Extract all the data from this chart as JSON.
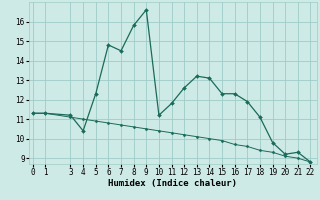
{
  "xlabel": "Humidex (Indice chaleur)",
  "bg_color": "#ceeae6",
  "grid_color": "#9eccc7",
  "line_color": "#1a6b5a",
  "line1_x": [
    0,
    1,
    3,
    4,
    5,
    6,
    7,
    8,
    9,
    10,
    11,
    12,
    13,
    14,
    15,
    16,
    17,
    18,
    19,
    20,
    21,
    22
  ],
  "line1_y": [
    11.3,
    11.3,
    11.2,
    10.4,
    12.3,
    14.8,
    14.5,
    15.8,
    16.6,
    11.2,
    11.8,
    12.6,
    13.2,
    13.1,
    12.3,
    12.3,
    11.9,
    11.1,
    9.8,
    9.2,
    9.3,
    8.8
  ],
  "line2_x": [
    0,
    1,
    3,
    4,
    5,
    6,
    7,
    8,
    9,
    10,
    11,
    12,
    13,
    14,
    15,
    16,
    17,
    18,
    19,
    20,
    21,
    22
  ],
  "line2_y": [
    11.3,
    11.3,
    11.1,
    11.0,
    10.9,
    10.8,
    10.7,
    10.6,
    10.5,
    10.4,
    10.3,
    10.2,
    10.1,
    10.0,
    9.9,
    9.7,
    9.6,
    9.4,
    9.3,
    9.1,
    9.0,
    8.8
  ],
  "xlim": [
    -0.3,
    22.5
  ],
  "ylim": [
    8.7,
    17.0
  ],
  "yticks": [
    9,
    10,
    11,
    12,
    13,
    14,
    15,
    16
  ],
  "xticks": [
    0,
    1,
    3,
    4,
    5,
    6,
    7,
    8,
    9,
    10,
    11,
    12,
    13,
    14,
    15,
    16,
    17,
    18,
    19,
    20,
    21,
    22
  ],
  "xtick_labels": [
    "0",
    "1",
    "3",
    "4",
    "5",
    "6",
    "7",
    "8",
    "9",
    "10",
    "11",
    "12",
    "13",
    "14",
    "15",
    "16",
    "17",
    "18",
    "19",
    "20",
    "21",
    "22"
  ],
  "axis_fontsize": 6.5,
  "tick_fontsize": 5.5
}
